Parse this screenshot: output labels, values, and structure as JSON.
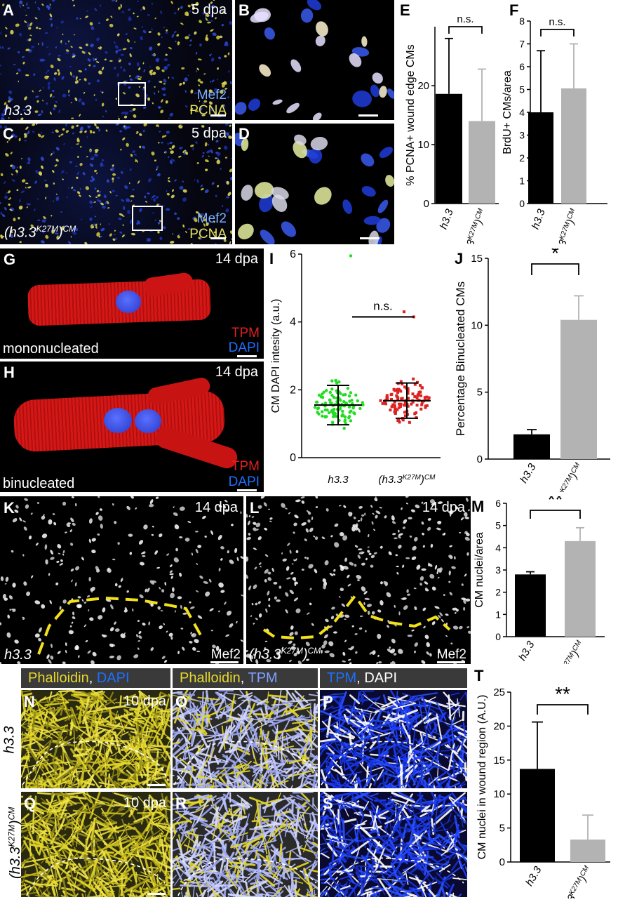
{
  "panels": {
    "A": {
      "label": "A",
      "time": "5 dpa",
      "genotype": "h3.3",
      "stain1": "Mef2",
      "stain2": "PCNA"
    },
    "B": {
      "label": "B"
    },
    "C": {
      "label": "C",
      "time": "5 dpa",
      "genotype_base": "(h3.3",
      "genotype_sup": "K27M",
      "genotype_end": ")",
      "genotype_sub": "CM",
      "stain1": "Mef2",
      "stain2": "PCNA"
    },
    "D": {
      "label": "D"
    },
    "G": {
      "label": "G",
      "time": "14 dpa",
      "caption": "mononucleated",
      "stain1": "TPM",
      "stain2": "DAPI"
    },
    "H": {
      "label": "H",
      "time": "14 dpa",
      "caption": "binucleated",
      "stain1": "TPM",
      "stain2": "DAPI"
    },
    "K": {
      "label": "K",
      "time": "14 dpa",
      "genotype": "h3.3",
      "stain": "Mef2"
    },
    "L": {
      "label": "L",
      "time": "14 dpa",
      "genotype_base": "(h3.3",
      "genotype_sup": "K27M",
      "genotype_end": ")",
      "genotype_sub": "CM",
      "stain": "Mef2"
    },
    "N": {
      "label": "N",
      "time": "10 dpa"
    },
    "O": {
      "label": "O"
    },
    "P": {
      "label": "P"
    },
    "Q": {
      "label": "Q",
      "time": "10 dpa"
    },
    "R": {
      "label": "R"
    },
    "S": {
      "label": "S"
    }
  },
  "headers": {
    "h1_a": "Phalloidin",
    "h1_b": ", ",
    "h1_c": "DAPI",
    "h2_a": "Phalloidin",
    "h2_b": ", ",
    "h2_c": "TPM",
    "h3_a": "TPM",
    "h3_b": ", DAPI"
  },
  "row_labels": {
    "top": "h3.3",
    "bottom_base": "(h3.3",
    "bottom_sup": "K27M",
    "bottom_end": ")",
    "bottom_sub": "CM"
  },
  "xcat": {
    "wt": "h3.3",
    "mut_base": "(h3.3",
    "mut_sup": "K27M",
    "mut_end": ")",
    "mut_sub": "CM"
  },
  "colors": {
    "wt": "#000000",
    "mut": "#b3b3b3",
    "green": "#22dd22",
    "red": "#dd2222",
    "mef2": "#7fb2ff",
    "pcna": "#e8e05a",
    "tpm_red": "#e02020",
    "dapi_blue": "#1e6fff",
    "phalloidin": "#e6d92a",
    "tpm_blue": "#2255ff"
  },
  "chart_data": [
    {
      "id": "E",
      "type": "bar",
      "ylabel": "% PCNA+ wound edge CMs",
      "ylim": [
        0,
        30
      ],
      "yticks": [
        0,
        10,
        20
      ],
      "values": [
        18.6,
        14
      ],
      "errors": [
        9.4,
        8.8
      ],
      "sig": "n.s."
    },
    {
      "id": "F",
      "type": "bar",
      "ylabel": "BrdU+ CMs/area",
      "ylim": [
        0,
        8
      ],
      "yticks": [
        0,
        1,
        2,
        3,
        4,
        5,
        6,
        7,
        8
      ],
      "values": [
        4.0,
        5.05
      ],
      "errors": [
        2.7,
        1.95
      ],
      "sig": "n.s."
    },
    {
      "id": "I",
      "type": "scatter",
      "ylabel": "CM DAPI intesity (a.u.)",
      "ylim": [
        0,
        6
      ],
      "yticks": [
        0,
        2,
        4,
        6
      ],
      "means": [
        1.55,
        1.68
      ],
      "sd": [
        0.58,
        0.52
      ],
      "sig": "n.s."
    },
    {
      "id": "J",
      "type": "bar",
      "ylabel": "Percentage Binucleated CMs",
      "ylim": [
        0,
        15
      ],
      "yticks": [
        0,
        5,
        10,
        15
      ],
      "values": [
        1.85,
        10.4
      ],
      "errors": [
        0.35,
        1.8
      ],
      "sig": "*"
    },
    {
      "id": "M",
      "type": "bar",
      "ylabel": "CM nuclei/area",
      "ylim": [
        0,
        6
      ],
      "yticks": [
        0,
        1,
        2,
        3,
        4,
        5,
        6
      ],
      "values": [
        2.8,
        4.3
      ],
      "errors": [
        0.12,
        0.6
      ],
      "sig": "**"
    },
    {
      "id": "T",
      "type": "bar",
      "ylabel": "CM nuclei in wound region (A.U.)",
      "ylim": [
        0,
        25
      ],
      "yticks": [
        0,
        5,
        10,
        15,
        20,
        25
      ],
      "values": [
        13.7,
        3.3
      ],
      "errors": [
        6.9,
        3.6
      ],
      "sig": "**"
    }
  ]
}
